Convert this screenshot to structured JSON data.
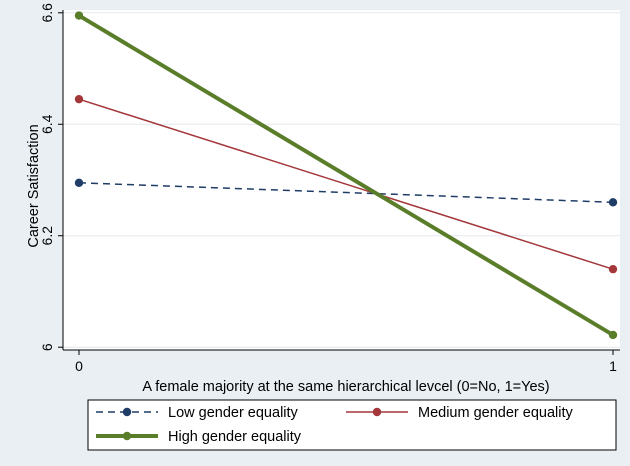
{
  "chart_data": {
    "type": "line",
    "title": "",
    "xlabel": "A female majority at the same hierarchical levcel (0=No, 1=Yes)",
    "ylabel": "Career Satisfaction",
    "x": [
      0,
      1
    ],
    "x_ticks": [
      0,
      1
    ],
    "x_tick_labels": [
      "0",
      "1"
    ],
    "xlim": [
      0,
      1
    ],
    "y_ticks": [
      6,
      6.2,
      6.4,
      6.6
    ],
    "y_tick_labels": [
      "6",
      "6.2",
      "6.4",
      "6.6"
    ],
    "ylim": [
      5.995,
      6.605
    ],
    "grid": true,
    "legend_position": "bottom",
    "series": [
      {
        "name": "Low gender equality",
        "values": [
          6.295,
          6.26
        ],
        "color": "#1f3d66",
        "style": "dashed",
        "marker": "circle"
      },
      {
        "name": "Medium gender equality",
        "values": [
          6.445,
          6.14
        ],
        "color": "#a3373a",
        "style": "solid",
        "marker": "circle"
      },
      {
        "name": "High gender equality",
        "values": [
          6.595,
          6.022
        ],
        "color": "#5a7d2a",
        "style": "thick",
        "marker": "circle"
      }
    ],
    "colors": {
      "outer_background": "#e9eff3",
      "plot_background": "#ffffff",
      "gridline": "#e3e9ee"
    }
  }
}
